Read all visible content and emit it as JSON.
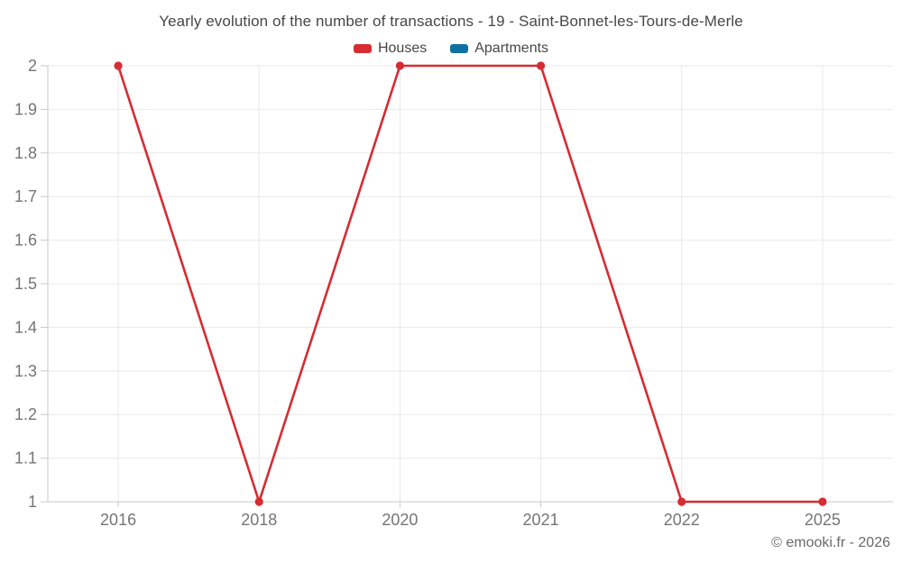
{
  "chart_data": {
    "type": "line",
    "title": "Yearly evolution of the number of transactions - 19 - Saint-Bonnet-les-Tours-de-Merle",
    "categories": [
      "2016",
      "2018",
      "2020",
      "2021",
      "2022",
      "2025"
    ],
    "series": [
      {
        "name": "Houses",
        "color": "#d62c32",
        "values": [
          2,
          1,
          2,
          2,
          1,
          1
        ]
      },
      {
        "name": "Apartments",
        "color": "#0f70a3",
        "values": []
      }
    ],
    "ylim": [
      1,
      2
    ],
    "y_ticks": [
      {
        "value": 1,
        "label": "1"
      },
      {
        "value": 1.1,
        "label": "1.1"
      },
      {
        "value": 1.2,
        "label": "1.2"
      },
      {
        "value": 1.3,
        "label": "1.3"
      },
      {
        "value": 1.4,
        "label": "1.4"
      },
      {
        "value": 1.5,
        "label": "1.5"
      },
      {
        "value": 1.6,
        "label": "1.6"
      },
      {
        "value": 1.7,
        "label": "1.7"
      },
      {
        "value": 1.8,
        "label": "1.8"
      },
      {
        "value": 1.9,
        "label": "1.9"
      },
      {
        "value": 2,
        "label": "2"
      }
    ],
    "grid": true,
    "legend_position": "top"
  },
  "footer": {
    "copyright": "© emooki.fr - 2026"
  }
}
